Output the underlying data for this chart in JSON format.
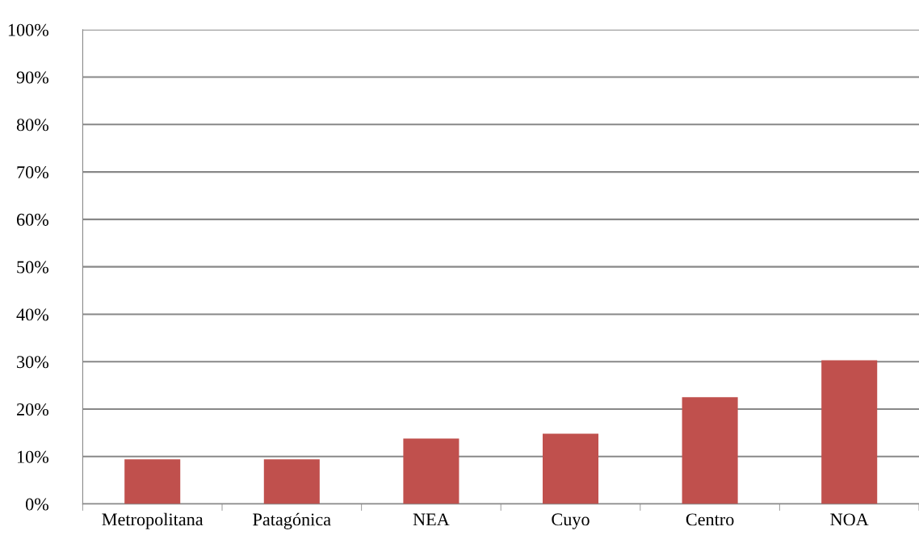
{
  "chart_data": {
    "type": "bar",
    "categories": [
      "Metropolitana",
      "Patagónica",
      "NEA",
      "Cuyo",
      "Centro",
      "NOA"
    ],
    "values": [
      9.4,
      9.4,
      13.8,
      14.8,
      22.5,
      30.3
    ],
    "color": "#c0504d",
    "ylim": [
      0,
      100
    ],
    "yticks": [
      {
        "value": 0,
        "label": "0%"
      },
      {
        "value": 10,
        "label": "10%"
      },
      {
        "value": 20,
        "label": "20%"
      },
      {
        "value": 30,
        "label": "30%"
      },
      {
        "value": 40,
        "label": "40%"
      },
      {
        "value": 50,
        "label": "50%"
      },
      {
        "value": 60,
        "label": "60%"
      },
      {
        "value": 70,
        "label": "70%"
      },
      {
        "value": 80,
        "label": "80%"
      },
      {
        "value": 90,
        "label": "90%"
      },
      {
        "value": 100,
        "label": "100%"
      }
    ],
    "grid": "y"
  }
}
